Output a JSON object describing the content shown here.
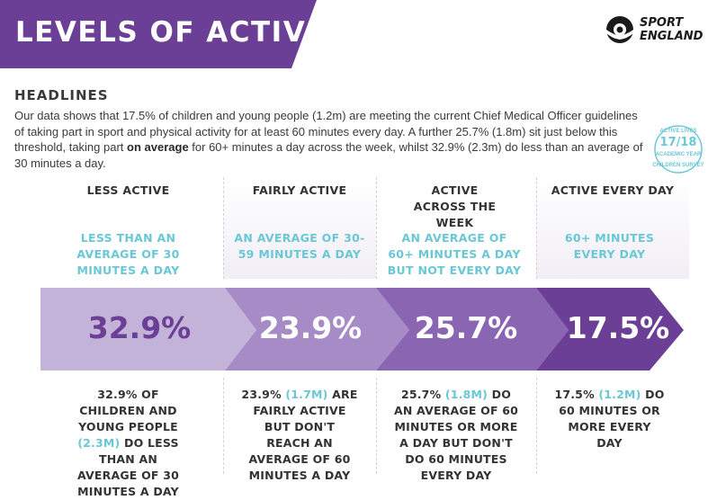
{
  "header": {
    "title": "LEVELS OF ACTIVITY",
    "logo_line1": "SPORT",
    "logo_line2": "ENGLAND"
  },
  "headlines": {
    "heading": "HEADLINES",
    "intro_part1": "Our data shows that 17.5% of children and young people (1.2m) are meeting the current Chief Medical Officer guidelines of taking part in sport and physical activity for at least 60 minutes every day. A further 25.7% (1.8m) sit just below this threshold, taking part ",
    "intro_bold": "on average",
    "intro_part2": " for 60+ minutes a day across the week, whilst 32.9% (2.3m) do less than an average of 30 minutes a day."
  },
  "badge": {
    "top": "ACTIVE LIVES",
    "year": "17/18",
    "academic": "ACADEMIC YEAR",
    "bottom": "CHILDREN SURVEY"
  },
  "colors": {
    "banner": "#6b3f95",
    "accent": "#6ac8d6",
    "seg1": "#c3b3d8",
    "seg2": "#a68bc6",
    "seg3": "#8a65b2",
    "seg4": "#6b3f95"
  },
  "levels": [
    {
      "heading": "LESS ACTIVE",
      "definition": "LESS THAN AN AVERAGE OF 30 MINUTES A DAY",
      "percent": "32.9%",
      "detail_a": "32.9% OF CHILDREN AND YOUNG PEOPLE ",
      "detail_hl": "(2.3M)",
      "detail_b": " DO LESS THAN AN AVERAGE OF 30 MINUTES A DAY"
    },
    {
      "heading": "FAIRLY ACTIVE",
      "definition": "AN AVERAGE OF 30-59 MINUTES A DAY",
      "percent": "23.9%",
      "detail_a": "23.9% ",
      "detail_hl": "(1.7M)",
      "detail_b": " ARE FAIRLY ACTIVE BUT DON'T REACH AN AVERAGE OF 60 MINUTES A DAY"
    },
    {
      "heading": "ACTIVE ACROSS THE WEEK",
      "definition": "AN AVERAGE OF 60+ MINUTES A DAY BUT NOT EVERY DAY",
      "percent": "25.7%",
      "detail_a": "25.7% ",
      "detail_hl": "(1.8M)",
      "detail_b": " DO AN AVERAGE OF 60 MINUTES OR MORE A DAY BUT DON'T DO 60 MINUTES EVERY DAY"
    },
    {
      "heading": "ACTIVE EVERY DAY",
      "definition": "60+ MINUTES EVERY DAY",
      "percent": "17.5%",
      "detail_a": "17.5% ",
      "detail_hl": "(1.2M)",
      "detail_b": " DO 60 MINUTES OR MORE EVERY DAY"
    }
  ]
}
